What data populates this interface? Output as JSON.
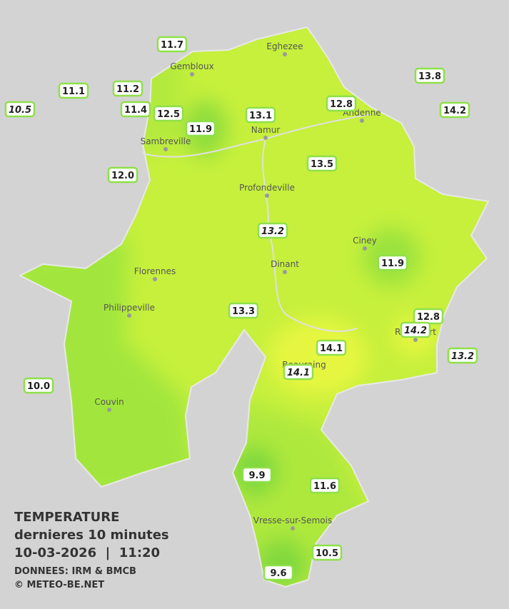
{
  "legend": {
    "title": "TEMPERATURE",
    "subtitle": "dernieres 10 minutes",
    "timestamp": "10-03-2026  |  11:20",
    "source": "DONNEES: IRM & BMCB",
    "credit": "© METEO-BE.NET"
  },
  "towns": [
    "Eghezee",
    "Gembloux",
    "Andenne",
    "Namur",
    "Sambreville",
    "Profondeville",
    "Ciney",
    "Dinant",
    "Florennes",
    "Philippeville",
    "Rochefort",
    "Beauraing",
    "Couvin",
    "Vresse-sur-Semois"
  ],
  "stations": [
    {
      "value": "11.7",
      "italic": false
    },
    {
      "value": "11.1",
      "italic": false
    },
    {
      "value": "11.2",
      "italic": false
    },
    {
      "value": "10.5",
      "italic": true
    },
    {
      "value": "11.4",
      "italic": false
    },
    {
      "value": "12.5",
      "italic": false
    },
    {
      "value": "11.9",
      "italic": false
    },
    {
      "value": "13.1",
      "italic": false
    },
    {
      "value": "12.8",
      "italic": false
    },
    {
      "value": "13.8",
      "italic": false
    },
    {
      "value": "14.2",
      "italic": false
    },
    {
      "value": "12.0",
      "italic": false
    },
    {
      "value": "13.5",
      "italic": false
    },
    {
      "value": "13.2",
      "italic": true
    },
    {
      "value": "11.9",
      "italic": false
    },
    {
      "value": "13.3",
      "italic": false
    },
    {
      "value": "12.8",
      "italic": false
    },
    {
      "value": "14.2",
      "italic": true
    },
    {
      "value": "14.1",
      "italic": false
    },
    {
      "value": "13.2",
      "italic": true
    },
    {
      "value": "14.1",
      "italic": true
    },
    {
      "value": "10.0",
      "italic": false
    },
    {
      "value": "9.9",
      "italic": false
    },
    {
      "value": "11.6",
      "italic": false
    },
    {
      "value": "10.5",
      "italic": false
    },
    {
      "value": "9.6",
      "italic": false
    }
  ]
}
